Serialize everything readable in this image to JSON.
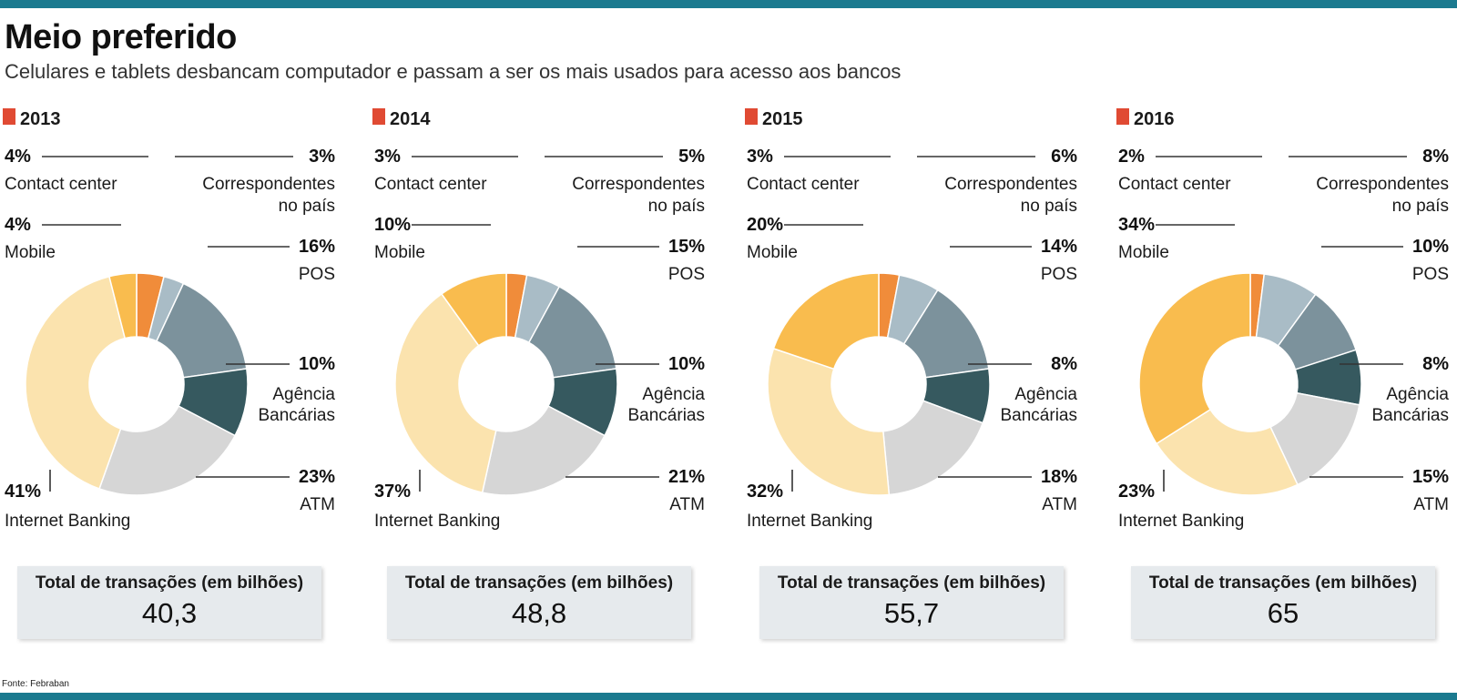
{
  "title": "Meio preferido",
  "subtitle": "Celulares e tablets desbancam computador e passam a ser os mais usados para acesso aos bancos",
  "source": "Fonte: Febraban",
  "colors": {
    "accent_bar": "#1b7a8f",
    "year_marker": "#e04a33",
    "contact_center": "#f08c3a",
    "correspondentes": "#a9bcc6",
    "pos": "#7c929c",
    "agencia": "#36595f",
    "atm": "#d6d6d6",
    "internet_banking": "#fbe3ae",
    "mobile": "#f9bc4e"
  },
  "total_caption": "Total de transações (em bilhões)",
  "chart_data": [
    {
      "type": "pie",
      "year": "2013",
      "total": "40,3",
      "slices": [
        {
          "key": "contact_center",
          "label": "Contact center",
          "value": 4,
          "text": "4%"
        },
        {
          "key": "correspondentes",
          "label": "Correspondentes no país",
          "value": 3,
          "text": "3%"
        },
        {
          "key": "pos",
          "label": "POS",
          "value": 16,
          "text": "16%"
        },
        {
          "key": "agencia",
          "label": "Agência Bancárias",
          "value": 10,
          "text": "10%"
        },
        {
          "key": "atm",
          "label": "ATM",
          "value": 23,
          "text": "23%"
        },
        {
          "key": "internet_banking",
          "label": "Internet Banking",
          "value": 41,
          "text": "41%"
        },
        {
          "key": "mobile",
          "label": "Mobile",
          "value": 4,
          "text": "4%"
        }
      ]
    },
    {
      "type": "pie",
      "year": "2014",
      "total": "48,8",
      "slices": [
        {
          "key": "contact_center",
          "label": "Contact center",
          "value": 3,
          "text": "3%"
        },
        {
          "key": "correspondentes",
          "label": "Correspondentes no país",
          "value": 5,
          "text": "5%"
        },
        {
          "key": "pos",
          "label": "POS",
          "value": 15,
          "text": "15%"
        },
        {
          "key": "agencia",
          "label": "Agência Bancárias",
          "value": 10,
          "text": "10%"
        },
        {
          "key": "atm",
          "label": "ATM",
          "value": 21,
          "text": "21%"
        },
        {
          "key": "internet_banking",
          "label": "Internet Banking",
          "value": 37,
          "text": "37%"
        },
        {
          "key": "mobile",
          "label": "Mobile",
          "value": 10,
          "text": "10%"
        }
      ]
    },
    {
      "type": "pie",
      "year": "2015",
      "total": "55,7",
      "slices": [
        {
          "key": "contact_center",
          "label": "Contact center",
          "value": 3,
          "text": "3%"
        },
        {
          "key": "correspondentes",
          "label": "Correspondentes no país",
          "value": 6,
          "text": "6%"
        },
        {
          "key": "pos",
          "label": "POS",
          "value": 14,
          "text": "14%"
        },
        {
          "key": "agencia",
          "label": "Agência Bancárias",
          "value": 8,
          "text": "8%"
        },
        {
          "key": "atm",
          "label": "ATM",
          "value": 18,
          "text": "18%"
        },
        {
          "key": "internet_banking",
          "label": "Internet Banking",
          "value": 32,
          "text": "32%"
        },
        {
          "key": "mobile",
          "label": "Mobile",
          "value": 20,
          "text": "20%"
        }
      ]
    },
    {
      "type": "pie",
      "year": "2016",
      "total": "65",
      "slices": [
        {
          "key": "contact_center",
          "label": "Contact center",
          "value": 2,
          "text": "2%"
        },
        {
          "key": "correspondentes",
          "label": "Correspondentes no país",
          "value": 8,
          "text": "8%"
        },
        {
          "key": "pos",
          "label": "POS",
          "value": 10,
          "text": "10%"
        },
        {
          "key": "agencia",
          "label": "Agência Bancárias",
          "value": 8,
          "text": "8%"
        },
        {
          "key": "atm",
          "label": "ATM",
          "value": 15,
          "text": "15%"
        },
        {
          "key": "internet_banking",
          "label": "Internet Banking",
          "value": 23,
          "text": "23%"
        },
        {
          "key": "mobile",
          "label": "Mobile",
          "value": 34,
          "text": "34%"
        }
      ]
    }
  ]
}
